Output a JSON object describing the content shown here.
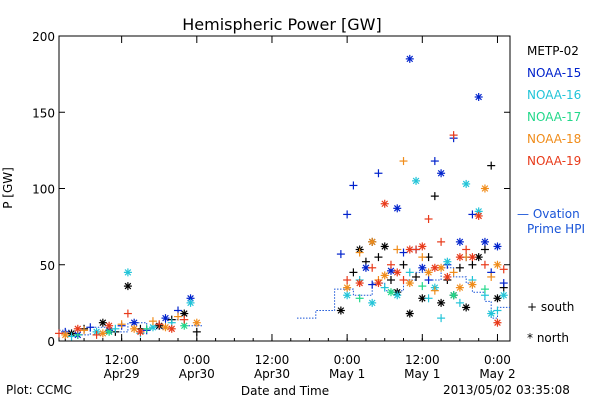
{
  "footer": {
    "plot_by": "Plot: CCMC",
    "timestamp": "2013/05/02 03:35:08"
  },
  "legend": {
    "items": [
      {
        "label": "METP-02",
        "color": "#000000"
      },
      {
        "label": "NOAA-15",
        "color": "#0022cc"
      },
      {
        "label": "NOAA-16",
        "color": "#22c4d8"
      },
      {
        "label": "NOAA-17",
        "color": "#22d88a"
      },
      {
        "label": "NOAA-18",
        "color": "#f08c1a"
      },
      {
        "label": "NOAA-19",
        "color": "#e83a1a"
      }
    ],
    "ovation": {
      "line1": "— Ovation",
      "line2": "Prime HPI",
      "color": "#1a55d8"
    },
    "symbols": {
      "south": "+ south",
      "north": "* north"
    }
  },
  "chart_data": {
    "type": "scatter",
    "title": "Hemispheric Power [GW]",
    "xlabel": "Date and Time",
    "ylabel": "P [GW]",
    "x_unit": "hours since 2013-04-29 00:00",
    "xlim": [
      2,
      74
    ],
    "ylim": [
      0,
      200
    ],
    "y_ticks": [
      0,
      50,
      100,
      150,
      200
    ],
    "x_ticks": [
      {
        "x": 12,
        "label": "12:00",
        "sub": "Apr29"
      },
      {
        "x": 24,
        "label": "0:00",
        "sub": "Apr30"
      },
      {
        "x": 36,
        "label": "12:00",
        "sub": "Apr30"
      },
      {
        "x": 48,
        "label": "0:00",
        "sub": "May 1"
      },
      {
        "x": 60,
        "label": "12:00",
        "sub": "May 1"
      },
      {
        "x": 72,
        "label": "0:00",
        "sub": "May 2"
      }
    ],
    "series": [
      {
        "name": "METP-02",
        "color": "#000000",
        "points": [
          [
            4,
            5,
            "*"
          ],
          [
            6,
            8,
            "+"
          ],
          [
            9,
            12,
            "*"
          ],
          [
            11,
            6,
            "+"
          ],
          [
            13,
            36,
            "*"
          ],
          [
            15,
            8,
            "+"
          ],
          [
            18,
            10,
            "*"
          ],
          [
            20,
            14,
            "+"
          ],
          [
            22,
            18,
            "*"
          ],
          [
            24,
            6,
            "+"
          ],
          [
            47,
            20,
            "*"
          ],
          [
            49,
            45,
            "+"
          ],
          [
            50,
            60,
            "*"
          ],
          [
            51,
            52,
            "+"
          ],
          [
            52,
            65,
            "*"
          ],
          [
            53,
            55,
            "+"
          ],
          [
            54,
            62,
            "*"
          ],
          [
            55,
            40,
            "+"
          ],
          [
            56,
            32,
            "*"
          ],
          [
            57,
            50,
            "+"
          ],
          [
            58,
            18,
            "*"
          ],
          [
            59,
            42,
            "+"
          ],
          [
            60,
            28,
            "*"
          ],
          [
            61,
            55,
            "+"
          ],
          [
            62,
            95,
            "+"
          ],
          [
            63,
            25,
            "*"
          ],
          [
            64,
            40,
            "+"
          ],
          [
            65,
            30,
            "*"
          ],
          [
            66,
            48,
            "+"
          ],
          [
            67,
            22,
            "*"
          ],
          [
            68,
            50,
            "+"
          ],
          [
            69,
            55,
            "*"
          ],
          [
            70,
            60,
            "+"
          ],
          [
            71,
            115,
            "+"
          ],
          [
            72,
            28,
            "*"
          ],
          [
            73,
            35,
            "+"
          ]
        ]
      },
      {
        "name": "NOAA-15",
        "color": "#0022cc",
        "points": [
          [
            3,
            6,
            "+"
          ],
          [
            5,
            4,
            "*"
          ],
          [
            7,
            9,
            "+"
          ],
          [
            10,
            7,
            "*"
          ],
          [
            12,
            10,
            "+"
          ],
          [
            14,
            12,
            "*"
          ],
          [
            16,
            7,
            "+"
          ],
          [
            19,
            15,
            "*"
          ],
          [
            21,
            20,
            "+"
          ],
          [
            23,
            28,
            "*"
          ],
          [
            47,
            57,
            "+"
          ],
          [
            48,
            83,
            "+"
          ],
          [
            49,
            102,
            "+"
          ],
          [
            51,
            48,
            "*"
          ],
          [
            52,
            37,
            "+"
          ],
          [
            53,
            110,
            "+"
          ],
          [
            55,
            46,
            "*"
          ],
          [
            56,
            87,
            "*"
          ],
          [
            57,
            58,
            "+"
          ],
          [
            58,
            185,
            "*"
          ],
          [
            59,
            60,
            "+"
          ],
          [
            60,
            48,
            "*"
          ],
          [
            61,
            40,
            "+"
          ],
          [
            62,
            118,
            "+"
          ],
          [
            63,
            110,
            "*"
          ],
          [
            64,
            50,
            "+"
          ],
          [
            65,
            133,
            "+"
          ],
          [
            66,
            65,
            "*"
          ],
          [
            67,
            55,
            "+"
          ],
          [
            68,
            83,
            "+"
          ],
          [
            69,
            160,
            "*"
          ],
          [
            70,
            65,
            "*"
          ],
          [
            71,
            45,
            "+"
          ],
          [
            72,
            62,
            "*"
          ],
          [
            73,
            38,
            "+"
          ]
        ]
      },
      {
        "name": "NOAA-16",
        "color": "#22c4d8",
        "points": [
          [
            4,
            3,
            "+"
          ],
          [
            8,
            6,
            "*"
          ],
          [
            11,
            8,
            "+"
          ],
          [
            13,
            45,
            "*"
          ],
          [
            15,
            5,
            "+"
          ],
          [
            17,
            9,
            "*"
          ],
          [
            20,
            12,
            "+"
          ],
          [
            23,
            25,
            "*"
          ],
          [
            48,
            30,
            "*"
          ],
          [
            50,
            40,
            "+"
          ],
          [
            52,
            25,
            "*"
          ],
          [
            54,
            35,
            "+"
          ],
          [
            56,
            30,
            "*"
          ],
          [
            58,
            45,
            "+"
          ],
          [
            59,
            105,
            "*"
          ],
          [
            61,
            28,
            "+"
          ],
          [
            62,
            35,
            "*"
          ],
          [
            63,
            15,
            "+"
          ],
          [
            64,
            52,
            "*"
          ],
          [
            66,
            25,
            "+"
          ],
          [
            67,
            103,
            "*"
          ],
          [
            68,
            40,
            "+"
          ],
          [
            69,
            85,
            "*"
          ],
          [
            70,
            30,
            "+"
          ],
          [
            71,
            18,
            "*"
          ],
          [
            72,
            20,
            "+"
          ],
          [
            73,
            30,
            "*"
          ]
        ]
      },
      {
        "name": "NOAA-17",
        "color": "#22d88a",
        "points": [
          [
            5,
            4,
            "+"
          ],
          [
            10,
            6,
            "*"
          ],
          [
            16,
            8,
            "+"
          ],
          [
            22,
            10,
            "*"
          ],
          [
            50,
            28,
            "+"
          ],
          [
            55,
            32,
            "*"
          ],
          [
            60,
            36,
            "+"
          ],
          [
            65,
            30,
            "*"
          ],
          [
            70,
            34,
            "+"
          ]
        ]
      },
      {
        "name": "NOAA-18",
        "color": "#f08c1a",
        "points": [
          [
            3,
            4,
            "*"
          ],
          [
            6,
            7,
            "+"
          ],
          [
            9,
            5,
            "*"
          ],
          [
            12,
            11,
            "+"
          ],
          [
            14,
            8,
            "*"
          ],
          [
            17,
            13,
            "+"
          ],
          [
            19,
            9,
            "*"
          ],
          [
            21,
            16,
            "+"
          ],
          [
            24,
            12,
            "*"
          ],
          [
            48,
            35,
            "*"
          ],
          [
            50,
            58,
            "+"
          ],
          [
            52,
            65,
            "*"
          ],
          [
            53,
            40,
            "+"
          ],
          [
            54,
            43,
            "*"
          ],
          [
            56,
            60,
            "+"
          ],
          [
            57,
            118,
            "+"
          ],
          [
            58,
            38,
            "*"
          ],
          [
            60,
            55,
            "+"
          ],
          [
            61,
            45,
            "*"
          ],
          [
            62,
            33,
            "+"
          ],
          [
            63,
            48,
            "*"
          ],
          [
            65,
            45,
            "+"
          ],
          [
            66,
            35,
            "*"
          ],
          [
            67,
            55,
            "+"
          ],
          [
            68,
            37,
            "*"
          ],
          [
            70,
            100,
            "*"
          ],
          [
            71,
            42,
            "+"
          ],
          [
            72,
            50,
            "*"
          ]
        ]
      },
      {
        "name": "NOAA-19",
        "color": "#e83a1a",
        "points": [
          [
            2,
            5,
            "+"
          ],
          [
            5,
            8,
            "*"
          ],
          [
            8,
            4,
            "+"
          ],
          [
            10,
            10,
            "*"
          ],
          [
            13,
            18,
            "+"
          ],
          [
            15,
            6,
            "*"
          ],
          [
            18,
            11,
            "+"
          ],
          [
            20,
            8,
            "*"
          ],
          [
            22,
            14,
            "+"
          ],
          [
            48,
            40,
            "+"
          ],
          [
            50,
            38,
            "*"
          ],
          [
            52,
            48,
            "+"
          ],
          [
            53,
            38,
            "*"
          ],
          [
            54,
            90,
            "*"
          ],
          [
            55,
            50,
            "+"
          ],
          [
            56,
            45,
            "*"
          ],
          [
            57,
            40,
            "+"
          ],
          [
            58,
            60,
            "*"
          ],
          [
            59,
            60,
            "+"
          ],
          [
            60,
            62,
            "*"
          ],
          [
            61,
            80,
            "+"
          ],
          [
            62,
            48,
            "*"
          ],
          [
            63,
            65,
            "+"
          ],
          [
            64,
            42,
            "*"
          ],
          [
            65,
            135,
            "+"
          ],
          [
            66,
            55,
            "*"
          ],
          [
            67,
            60,
            "+"
          ],
          [
            68,
            55,
            "*"
          ],
          [
            69,
            82,
            "*"
          ],
          [
            70,
            50,
            "+"
          ],
          [
            72,
            12,
            "*"
          ],
          [
            73,
            47,
            "+"
          ]
        ]
      }
    ],
    "ovation_hpi": {
      "name": "Ovation Prime HPI",
      "color": "#1a55d8",
      "points": [
        [
          2,
          7
        ],
        [
          4,
          7
        ],
        [
          4,
          4
        ],
        [
          7,
          4
        ],
        [
          7,
          9
        ],
        [
          10,
          9
        ],
        [
          10,
          6
        ],
        [
          13,
          6
        ],
        [
          13,
          12
        ],
        [
          16,
          12
        ],
        [
          16,
          8
        ],
        [
          19,
          8
        ],
        [
          19,
          14
        ],
        [
          22,
          14
        ],
        [
          22,
          10
        ],
        [
          25,
          10
        ],
        [
          40,
          15
        ],
        [
          43,
          15
        ],
        [
          43,
          20
        ],
        [
          46,
          20
        ],
        [
          46,
          34
        ],
        [
          49,
          34
        ],
        [
          49,
          30
        ],
        [
          52,
          30
        ],
        [
          52,
          38
        ],
        [
          54,
          38
        ],
        [
          54,
          33
        ],
        [
          57,
          33
        ],
        [
          57,
          40
        ],
        [
          59,
          40
        ],
        [
          59,
          45
        ],
        [
          61,
          45
        ],
        [
          61,
          40
        ],
        [
          63,
          40
        ],
        [
          63,
          48
        ],
        [
          65,
          48
        ],
        [
          65,
          42
        ],
        [
          67,
          42
        ],
        [
          67,
          38
        ],
        [
          68,
          38
        ],
        [
          68,
          32
        ],
        [
          70,
          32
        ],
        [
          70,
          26
        ],
        [
          71,
          26
        ],
        [
          71,
          15
        ],
        [
          72,
          15
        ],
        [
          72,
          22
        ],
        [
          74,
          22
        ]
      ]
    }
  }
}
